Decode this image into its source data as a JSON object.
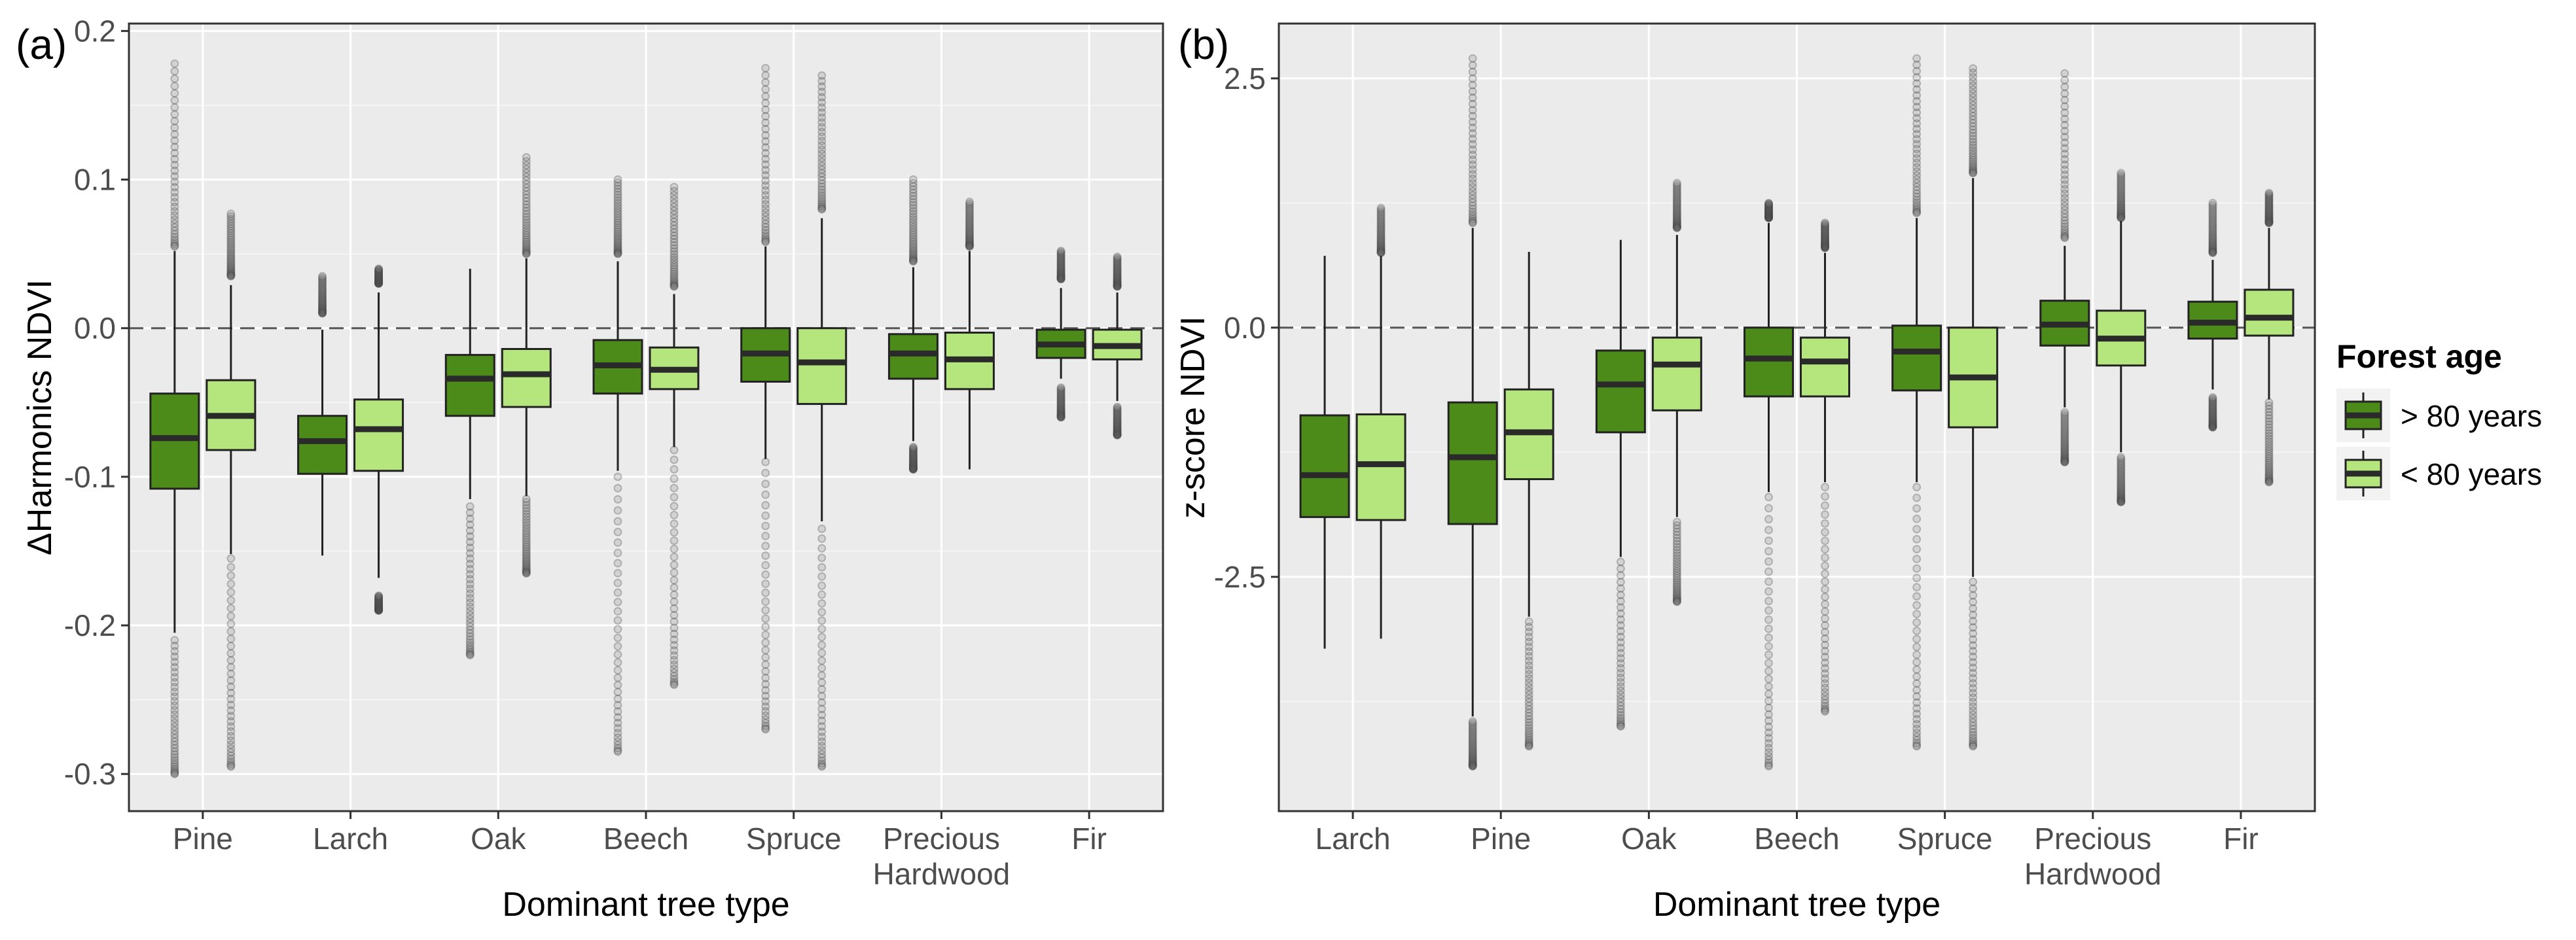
{
  "legend": {
    "title": "Forest age",
    "items": [
      {
        "label": "> 80 years",
        "color": "#4c8a1a"
      },
      {
        "label": "< 80 years",
        "color": "#b5e67d"
      }
    ]
  },
  "chart_data": [
    {
      "panel": "(a)",
      "type": "boxplot",
      "ylabel": "ΔHarmonics NDVI",
      "xlabel": "Dominant tree type",
      "ylim": [
        -0.325,
        0.205
      ],
      "yticks": [
        0.2,
        0.1,
        0.0,
        -0.1,
        -0.2,
        -0.3
      ],
      "ytick_labels": [
        "0.2",
        "0.1",
        "0.0",
        "-0.1",
        "-0.2",
        "-0.3"
      ],
      "reference_line": 0,
      "categories": [
        "Pine",
        "Larch",
        "Oak",
        "Beech",
        "Spruce",
        "Precious\nHardwood",
        "Fir"
      ],
      "series": [
        {
          "name": "> 80 years",
          "boxes": [
            {
              "lo": -0.205,
              "q1": -0.108,
              "med": -0.074,
              "q3": -0.044,
              "hi": 0.052,
              "out_lo": [
                -0.3,
                -0.21
              ],
              "out_hi": [
                0.055,
                0.178
              ]
            },
            {
              "lo": -0.153,
              "q1": -0.098,
              "med": -0.076,
              "q3": -0.059,
              "hi": -0.001,
              "out_lo": null,
              "out_hi": [
                0.01,
                0.035
              ]
            },
            {
              "lo": -0.115,
              "q1": -0.059,
              "med": -0.034,
              "q3": -0.018,
              "hi": 0.04,
              "out_lo": [
                -0.22,
                -0.12
              ],
              "out_hi": null
            },
            {
              "lo": -0.096,
              "q1": -0.044,
              "med": -0.025,
              "q3": -0.008,
              "hi": 0.045,
              "out_lo": [
                -0.285,
                -0.1
              ],
              "out_hi": [
                0.05,
                0.1
              ]
            },
            {
              "lo": -0.088,
              "q1": -0.036,
              "med": -0.017,
              "q3": 0.0,
              "hi": 0.055,
              "out_lo": [
                -0.27,
                -0.09
              ],
              "out_hi": [
                0.058,
                0.175
              ]
            },
            {
              "lo": -0.076,
              "q1": -0.034,
              "med": -0.017,
              "q3": -0.004,
              "hi": 0.041,
              "out_lo": [
                -0.095,
                -0.08
              ],
              "out_hi": [
                0.045,
                0.1
              ]
            },
            {
              "lo": -0.034,
              "q1": -0.02,
              "med": -0.011,
              "q3": -0.001,
              "hi": 0.027,
              "out_lo": [
                -0.06,
                -0.04
              ],
              "out_hi": [
                0.033,
                0.052
              ]
            }
          ]
        },
        {
          "name": "< 80 years",
          "boxes": [
            {
              "lo": -0.152,
              "q1": -0.082,
              "med": -0.059,
              "q3": -0.035,
              "hi": 0.029,
              "out_lo": [
                -0.295,
                -0.155
              ],
              "out_hi": [
                0.035,
                0.077
              ]
            },
            {
              "lo": -0.168,
              "q1": -0.096,
              "med": -0.068,
              "q3": -0.048,
              "hi": 0.024,
              "out_lo": [
                -0.19,
                -0.18
              ],
              "out_hi": [
                0.03,
                0.04
              ]
            },
            {
              "lo": -0.113,
              "q1": -0.053,
              "med": -0.031,
              "q3": -0.014,
              "hi": 0.047,
              "out_lo": [
                -0.165,
                -0.115
              ],
              "out_hi": [
                0.05,
                0.115
              ]
            },
            {
              "lo": -0.08,
              "q1": -0.041,
              "med": -0.028,
              "q3": -0.013,
              "hi": 0.023,
              "out_lo": [
                -0.24,
                -0.082
              ],
              "out_hi": [
                0.028,
                0.095
              ]
            },
            {
              "lo": -0.13,
              "q1": -0.051,
              "med": -0.023,
              "q3": 0.0,
              "hi": 0.074,
              "out_lo": [
                -0.295,
                -0.135
              ],
              "out_hi": [
                0.08,
                0.17
              ]
            },
            {
              "lo": -0.095,
              "q1": -0.041,
              "med": -0.021,
              "q3": -0.003,
              "hi": 0.052,
              "out_lo": null,
              "out_hi": [
                0.055,
                0.085
              ]
            },
            {
              "lo": -0.049,
              "q1": -0.021,
              "med": -0.012,
              "q3": -0.001,
              "hi": 0.024,
              "out_lo": [
                -0.072,
                -0.053
              ],
              "out_hi": [
                0.028,
                0.048
              ]
            }
          ]
        }
      ]
    },
    {
      "panel": "(b)",
      "type": "boxplot",
      "ylabel": "z-score NDVI",
      "xlabel": "Dominant tree type",
      "ylim": [
        -4.85,
        3.05
      ],
      "yticks": [
        2.5,
        0.0,
        -2.5
      ],
      "ytick_labels": [
        "2.5",
        "0.0",
        "-2.5"
      ],
      "reference_line": 0,
      "categories": [
        "Larch",
        "Pine",
        "Oak",
        "Beech",
        "Spruce",
        "Precious\nHardwood",
        "Fir"
      ],
      "series": [
        {
          "name": "> 80 years",
          "boxes": [
            {
              "lo": -3.22,
              "q1": -1.9,
              "med": -1.48,
              "q3": -0.88,
              "hi": 0.72,
              "out_lo": null,
              "out_hi": null
            },
            {
              "lo": -3.9,
              "q1": -1.97,
              "med": -1.3,
              "q3": -0.75,
              "hi": 1.0,
              "out_lo": [
                -4.4,
                -3.95
              ],
              "out_hi": [
                1.05,
                2.7
              ]
            },
            {
              "lo": -2.3,
              "q1": -1.05,
              "med": -0.57,
              "q3": -0.23,
              "hi": 0.88,
              "out_lo": [
                -4.0,
                -2.35
              ],
              "out_hi": null
            },
            {
              "lo": -1.65,
              "q1": -0.69,
              "med": -0.31,
              "q3": 0.0,
              "hi": 1.05,
              "out_lo": [
                -4.4,
                -1.7
              ],
              "out_hi": [
                1.1,
                1.25
              ]
            },
            {
              "lo": -1.55,
              "q1": -0.63,
              "med": -0.24,
              "q3": 0.02,
              "hi": 1.1,
              "out_lo": [
                -4.2,
                -1.6
              ],
              "out_hi": [
                1.15,
                2.7
              ]
            },
            {
              "lo": -0.8,
              "q1": -0.18,
              "med": 0.03,
              "q3": 0.27,
              "hi": 0.82,
              "out_lo": [
                -1.35,
                -0.85
              ],
              "out_hi": [
                0.9,
                2.55
              ]
            },
            {
              "lo": -0.62,
              "q1": -0.11,
              "med": 0.05,
              "q3": 0.26,
              "hi": 0.68,
              "out_lo": [
                -1.0,
                -0.7
              ],
              "out_hi": [
                0.75,
                1.25
              ]
            }
          ]
        },
        {
          "name": "< 80 years",
          "boxes": [
            {
              "lo": -3.12,
              "q1": -1.93,
              "med": -1.37,
              "q3": -0.87,
              "hi": 0.72,
              "out_lo": null,
              "out_hi": [
                0.75,
                1.2
              ]
            },
            {
              "lo": -2.9,
              "q1": -1.52,
              "med": -1.05,
              "q3": -0.62,
              "hi": 0.76,
              "out_lo": [
                -4.2,
                -2.95
              ],
              "out_hi": null
            },
            {
              "lo": -1.9,
              "q1": -0.83,
              "med": -0.37,
              "q3": -0.1,
              "hi": 0.93,
              "out_lo": [
                -2.75,
                -1.95
              ],
              "out_hi": [
                1.0,
                1.45
              ]
            },
            {
              "lo": -1.55,
              "q1": -0.69,
              "med": -0.34,
              "q3": -0.1,
              "hi": 0.75,
              "out_lo": [
                -3.85,
                -1.6
              ],
              "out_hi": [
                0.8,
                1.05
              ]
            },
            {
              "lo": -2.5,
              "q1": -1.0,
              "med": -0.5,
              "q3": 0.0,
              "hi": 1.5,
              "out_lo": [
                -4.2,
                -2.55
              ],
              "out_hi": [
                1.55,
                2.6
              ]
            },
            {
              "lo": -1.25,
              "q1": -0.38,
              "med": -0.11,
              "q3": 0.17,
              "hi": 1.07,
              "out_lo": [
                -1.75,
                -1.3
              ],
              "out_hi": [
                1.1,
                1.55
              ]
            },
            {
              "lo": -0.72,
              "q1": -0.08,
              "med": 0.1,
              "q3": 0.38,
              "hi": 1.0,
              "out_lo": [
                -1.55,
                -0.75
              ],
              "out_hi": [
                1.05,
                1.35
              ]
            }
          ]
        }
      ]
    }
  ]
}
